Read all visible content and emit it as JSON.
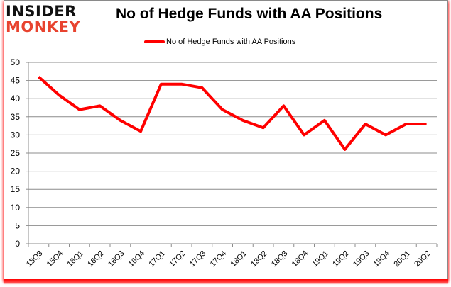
{
  "logo": {
    "line1": "INSIDER",
    "line2": "MONKEY"
  },
  "colors": {
    "series": "#ff0000",
    "grid": "#8c8c8c",
    "logo_accent": "#e8432f",
    "frame_shadow": "#ff0000"
  },
  "chart_data": {
    "type": "line",
    "title": "No of Hedge Funds with AA Positions",
    "xlabel": "",
    "ylabel": "",
    "ylim": [
      0,
      50
    ],
    "yticks": [
      0,
      5,
      10,
      15,
      20,
      25,
      30,
      35,
      40,
      45,
      50
    ],
    "grid": true,
    "legend_position": "top",
    "categories": [
      "15Q3",
      "15Q4",
      "16Q1",
      "16Q2",
      "16Q3",
      "16Q4",
      "17Q1",
      "17Q2",
      "17Q3",
      "17Q4",
      "18Q1",
      "18Q2",
      "18Q3",
      "18Q4",
      "19Q1",
      "19Q2",
      "19Q3",
      "19Q4",
      "20Q1",
      "20Q2"
    ],
    "series": [
      {
        "name": "No of Hedge Funds with AA Positions",
        "color": "#ff0000",
        "values": [
          46,
          41,
          37,
          38,
          34,
          31,
          44,
          44,
          43,
          37,
          34,
          32,
          38,
          30,
          34,
          26,
          33,
          30,
          33,
          33
        ]
      }
    ]
  }
}
